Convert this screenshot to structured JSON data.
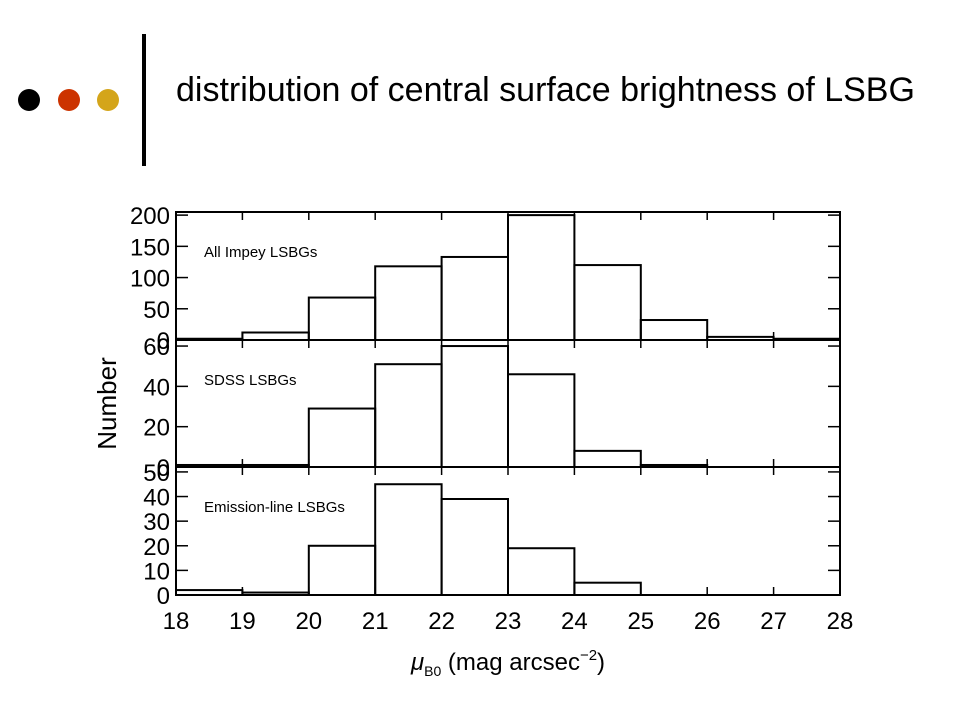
{
  "slide": {
    "title": "distribution of central surface brightness of LSBG",
    "bullet_colors": [
      "#000000",
      "#cc3300",
      "#d4a51a"
    ]
  },
  "chart_data": {
    "type": "bar",
    "ylabel": "Number",
    "xlabel_symbol": "μ",
    "xlabel_sub": "B0",
    "xlabel_text": "(mag arcsec",
    "xlabel_sup": "−2",
    "xlabel_close": ")",
    "x_ticks": [
      "18",
      "19",
      "20",
      "21",
      "22",
      "23",
      "24",
      "25",
      "26",
      "27",
      "28"
    ],
    "xlim": [
      18,
      28
    ],
    "bin_edges": [
      18,
      19,
      20,
      21,
      22,
      23,
      24,
      25,
      26,
      27,
      28
    ],
    "panels": [
      {
        "label": "All Impey LSBGs",
        "ylim": [
          0,
          205
        ],
        "y_ticks": [
          "0",
          "50",
          "100",
          "150",
          "200"
        ],
        "y_tick_values": [
          0,
          50,
          100,
          150,
          200
        ],
        "values": [
          2,
          12,
          68,
          118,
          133,
          200,
          120,
          32,
          5,
          2
        ]
      },
      {
        "label": "SDSS LSBGs",
        "ylim": [
          0,
          63
        ],
        "y_ticks": [
          "0",
          "20",
          "40",
          "60"
        ],
        "y_tick_values": [
          0,
          20,
          40,
          60
        ],
        "values": [
          1,
          1,
          29,
          51,
          60,
          46,
          8,
          1,
          0,
          0
        ]
      },
      {
        "label": "Emission-line LSBGs",
        "ylim": [
          0,
          52
        ],
        "y_ticks": [
          "0",
          "10",
          "20",
          "30",
          "40",
          "50"
        ],
        "y_tick_values": [
          0,
          10,
          20,
          30,
          40,
          50
        ],
        "values": [
          2,
          1,
          20,
          45,
          39,
          19,
          5,
          0,
          0,
          0
        ]
      }
    ]
  }
}
